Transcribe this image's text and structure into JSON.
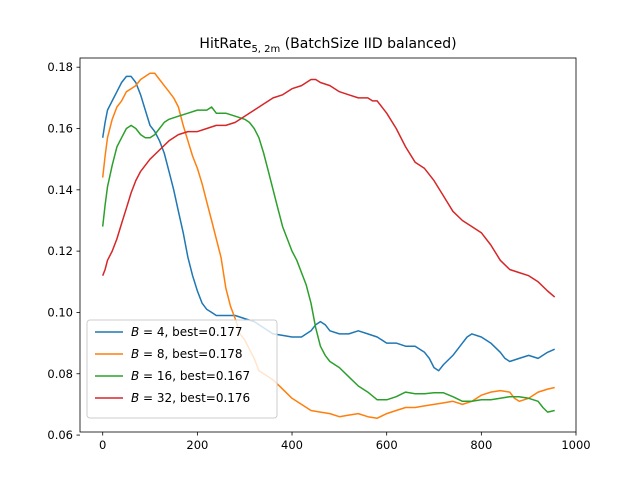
{
  "chart_data": {
    "type": "line",
    "title_main": "HitRate",
    "title_sub": "5, 2m",
    "title_rest": " (BatchSize IID balanced)",
    "xlabel": "",
    "ylabel": "",
    "xlim": [
      -48,
      1000
    ],
    "ylim": [
      0.061,
      0.183
    ],
    "x_ticks": [
      0,
      200,
      400,
      600,
      800,
      1000
    ],
    "x_tick_labels": [
      "0",
      "200",
      "400",
      "600",
      "800",
      "1000"
    ],
    "y_ticks": [
      0.06,
      0.08,
      0.1,
      0.12,
      0.14,
      0.16,
      0.18
    ],
    "y_tick_labels": [
      "0.06",
      "0.08",
      "0.10",
      "0.12",
      "0.14",
      "0.16",
      "0.18"
    ],
    "grid": false,
    "legend_position": "lower-left",
    "series": [
      {
        "name": "B = 4",
        "legend_var": "B",
        "legend_text": " = 4, best=0.177",
        "color": "#1f77b4",
        "points": [
          [
            0,
            0.157
          ],
          [
            5,
            0.162
          ],
          [
            10,
            0.166
          ],
          [
            20,
            0.169
          ],
          [
            30,
            0.172
          ],
          [
            40,
            0.175
          ],
          [
            50,
            0.177
          ],
          [
            60,
            0.177
          ],
          [
            70,
            0.175
          ],
          [
            80,
            0.171
          ],
          [
            90,
            0.166
          ],
          [
            100,
            0.161
          ],
          [
            110,
            0.159
          ],
          [
            120,
            0.156
          ],
          [
            130,
            0.152
          ],
          [
            140,
            0.146
          ],
          [
            150,
            0.14
          ],
          [
            160,
            0.133
          ],
          [
            170,
            0.126
          ],
          [
            180,
            0.118
          ],
          [
            190,
            0.112
          ],
          [
            200,
            0.107
          ],
          [
            210,
            0.103
          ],
          [
            220,
            0.101
          ],
          [
            230,
            0.1
          ],
          [
            240,
            0.099
          ],
          [
            260,
            0.099
          ],
          [
            280,
            0.099
          ],
          [
            300,
            0.098
          ],
          [
            320,
            0.097
          ],
          [
            340,
            0.095
          ],
          [
            360,
            0.093
          ],
          [
            380,
            0.0925
          ],
          [
            400,
            0.092
          ],
          [
            420,
            0.092
          ],
          [
            440,
            0.094
          ],
          [
            450,
            0.096
          ],
          [
            460,
            0.097
          ],
          [
            470,
            0.096
          ],
          [
            480,
            0.094
          ],
          [
            500,
            0.093
          ],
          [
            520,
            0.093
          ],
          [
            540,
            0.094
          ],
          [
            560,
            0.093
          ],
          [
            580,
            0.092
          ],
          [
            600,
            0.09
          ],
          [
            620,
            0.09
          ],
          [
            640,
            0.089
          ],
          [
            660,
            0.089
          ],
          [
            680,
            0.087
          ],
          [
            690,
            0.085
          ],
          [
            700,
            0.082
          ],
          [
            710,
            0.081
          ],
          [
            720,
            0.083
          ],
          [
            740,
            0.086
          ],
          [
            760,
            0.09
          ],
          [
            770,
            0.092
          ],
          [
            780,
            0.093
          ],
          [
            800,
            0.092
          ],
          [
            820,
            0.09
          ],
          [
            840,
            0.087
          ],
          [
            850,
            0.085
          ],
          [
            860,
            0.084
          ],
          [
            880,
            0.085
          ],
          [
            900,
            0.086
          ],
          [
            920,
            0.085
          ],
          [
            940,
            0.087
          ],
          [
            955,
            0.088
          ]
        ]
      },
      {
        "name": "B = 8",
        "legend_var": "B",
        "legend_text": " = 8, best=0.178",
        "color": "#ff7f0e",
        "points": [
          [
            0,
            0.144
          ],
          [
            5,
            0.151
          ],
          [
            10,
            0.157
          ],
          [
            20,
            0.163
          ],
          [
            30,
            0.167
          ],
          [
            40,
            0.169
          ],
          [
            50,
            0.172
          ],
          [
            60,
            0.173
          ],
          [
            70,
            0.174
          ],
          [
            80,
            0.176
          ],
          [
            90,
            0.177
          ],
          [
            100,
            0.178
          ],
          [
            110,
            0.178
          ],
          [
            120,
            0.176
          ],
          [
            130,
            0.174
          ],
          [
            140,
            0.172
          ],
          [
            150,
            0.17
          ],
          [
            160,
            0.167
          ],
          [
            170,
            0.161
          ],
          [
            180,
            0.156
          ],
          [
            190,
            0.151
          ],
          [
            200,
            0.147
          ],
          [
            210,
            0.142
          ],
          [
            220,
            0.136
          ],
          [
            230,
            0.13
          ],
          [
            240,
            0.124
          ],
          [
            250,
            0.118
          ],
          [
            260,
            0.108
          ],
          [
            270,
            0.102
          ],
          [
            280,
            0.098
          ],
          [
            290,
            0.093
          ],
          [
            300,
            0.091
          ],
          [
            310,
            0.088
          ],
          [
            320,
            0.085
          ],
          [
            330,
            0.081
          ],
          [
            340,
            0.08
          ],
          [
            360,
            0.078
          ],
          [
            380,
            0.075
          ],
          [
            400,
            0.072
          ],
          [
            420,
            0.07
          ],
          [
            440,
            0.068
          ],
          [
            460,
            0.0675
          ],
          [
            480,
            0.067
          ],
          [
            500,
            0.066
          ],
          [
            520,
            0.0665
          ],
          [
            540,
            0.067
          ],
          [
            560,
            0.066
          ],
          [
            580,
            0.0655
          ],
          [
            600,
            0.067
          ],
          [
            620,
            0.068
          ],
          [
            640,
            0.069
          ],
          [
            660,
            0.069
          ],
          [
            680,
            0.0695
          ],
          [
            700,
            0.07
          ],
          [
            720,
            0.0705
          ],
          [
            740,
            0.071
          ],
          [
            760,
            0.07
          ],
          [
            780,
            0.071
          ],
          [
            800,
            0.073
          ],
          [
            820,
            0.074
          ],
          [
            840,
            0.0745
          ],
          [
            860,
            0.074
          ],
          [
            870,
            0.072
          ],
          [
            880,
            0.071
          ],
          [
            900,
            0.072
          ],
          [
            920,
            0.074
          ],
          [
            940,
            0.075
          ],
          [
            955,
            0.0755
          ]
        ]
      },
      {
        "name": "B = 16",
        "legend_var": "B",
        "legend_text": " = 16, best=0.167",
        "color": "#2ca02c",
        "points": [
          [
            0,
            0.128
          ],
          [
            5,
            0.135
          ],
          [
            10,
            0.141
          ],
          [
            20,
            0.148
          ],
          [
            30,
            0.154
          ],
          [
            40,
            0.157
          ],
          [
            50,
            0.16
          ],
          [
            60,
            0.161
          ],
          [
            70,
            0.16
          ],
          [
            80,
            0.158
          ],
          [
            90,
            0.157
          ],
          [
            100,
            0.157
          ],
          [
            110,
            0.158
          ],
          [
            120,
            0.16
          ],
          [
            130,
            0.162
          ],
          [
            140,
            0.163
          ],
          [
            160,
            0.164
          ],
          [
            180,
            0.165
          ],
          [
            200,
            0.166
          ],
          [
            220,
            0.166
          ],
          [
            230,
            0.167
          ],
          [
            240,
            0.165
          ],
          [
            260,
            0.165
          ],
          [
            280,
            0.164
          ],
          [
            300,
            0.163
          ],
          [
            310,
            0.162
          ],
          [
            320,
            0.16
          ],
          [
            330,
            0.157
          ],
          [
            340,
            0.152
          ],
          [
            350,
            0.146
          ],
          [
            360,
            0.14
          ],
          [
            370,
            0.134
          ],
          [
            380,
            0.128
          ],
          [
            390,
            0.124
          ],
          [
            400,
            0.12
          ],
          [
            410,
            0.117
          ],
          [
            420,
            0.113
          ],
          [
            430,
            0.109
          ],
          [
            440,
            0.103
          ],
          [
            450,
            0.095
          ],
          [
            460,
            0.089
          ],
          [
            470,
            0.086
          ],
          [
            480,
            0.084
          ],
          [
            500,
            0.082
          ],
          [
            520,
            0.079
          ],
          [
            540,
            0.076
          ],
          [
            560,
            0.074
          ],
          [
            580,
            0.0715
          ],
          [
            600,
            0.0715
          ],
          [
            620,
            0.0725
          ],
          [
            640,
            0.074
          ],
          [
            660,
            0.0735
          ],
          [
            680,
            0.0735
          ],
          [
            700,
            0.0738
          ],
          [
            720,
            0.0738
          ],
          [
            740,
            0.0725
          ],
          [
            760,
            0.071
          ],
          [
            780,
            0.071
          ],
          [
            800,
            0.0715
          ],
          [
            820,
            0.0715
          ],
          [
            840,
            0.072
          ],
          [
            860,
            0.0725
          ],
          [
            880,
            0.0725
          ],
          [
            900,
            0.072
          ],
          [
            920,
            0.071
          ],
          [
            930,
            0.069
          ],
          [
            940,
            0.0675
          ],
          [
            955,
            0.068
          ]
        ]
      },
      {
        "name": "B = 32",
        "legend_var": "B",
        "legend_text": " = 32, best=0.176",
        "color": "#d62728",
        "points": [
          [
            0,
            0.112
          ],
          [
            5,
            0.114
          ],
          [
            10,
            0.117
          ],
          [
            20,
            0.12
          ],
          [
            30,
            0.124
          ],
          [
            40,
            0.129
          ],
          [
            50,
            0.134
          ],
          [
            60,
            0.139
          ],
          [
            70,
            0.143
          ],
          [
            80,
            0.146
          ],
          [
            90,
            0.148
          ],
          [
            100,
            0.15
          ],
          [
            120,
            0.153
          ],
          [
            140,
            0.156
          ],
          [
            160,
            0.158
          ],
          [
            180,
            0.159
          ],
          [
            200,
            0.159
          ],
          [
            220,
            0.16
          ],
          [
            240,
            0.161
          ],
          [
            260,
            0.161
          ],
          [
            280,
            0.162
          ],
          [
            300,
            0.164
          ],
          [
            320,
            0.166
          ],
          [
            340,
            0.168
          ],
          [
            360,
            0.17
          ],
          [
            380,
            0.171
          ],
          [
            400,
            0.173
          ],
          [
            420,
            0.174
          ],
          [
            440,
            0.176
          ],
          [
            450,
            0.176
          ],
          [
            460,
            0.175
          ],
          [
            480,
            0.174
          ],
          [
            500,
            0.172
          ],
          [
            520,
            0.171
          ],
          [
            540,
            0.17
          ],
          [
            560,
            0.17
          ],
          [
            570,
            0.169
          ],
          [
            580,
            0.169
          ],
          [
            600,
            0.165
          ],
          [
            620,
            0.16
          ],
          [
            640,
            0.154
          ],
          [
            660,
            0.149
          ],
          [
            680,
            0.147
          ],
          [
            700,
            0.143
          ],
          [
            720,
            0.138
          ],
          [
            740,
            0.133
          ],
          [
            760,
            0.13
          ],
          [
            780,
            0.128
          ],
          [
            800,
            0.126
          ],
          [
            820,
            0.122
          ],
          [
            840,
            0.117
          ],
          [
            860,
            0.114
          ],
          [
            880,
            0.113
          ],
          [
            900,
            0.112
          ],
          [
            920,
            0.11
          ],
          [
            940,
            0.107
          ],
          [
            955,
            0.105
          ]
        ]
      }
    ]
  }
}
